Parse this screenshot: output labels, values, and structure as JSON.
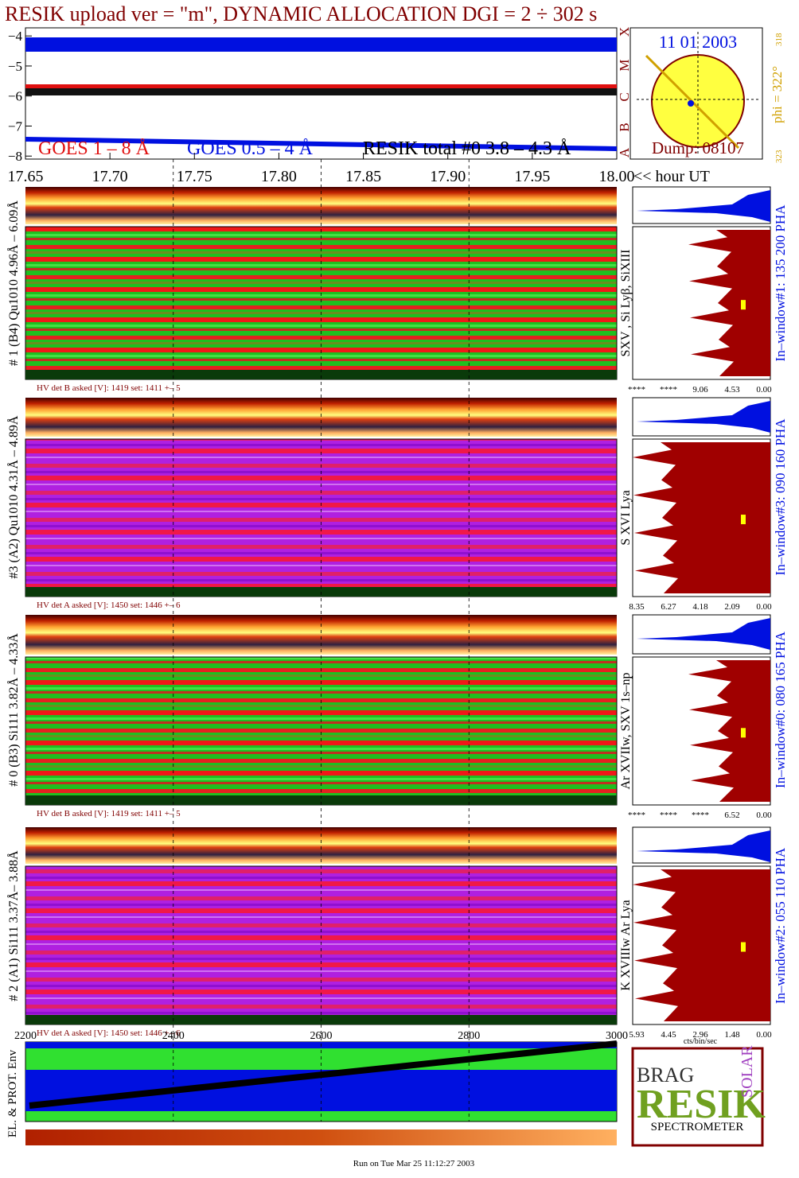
{
  "title": "RESIK upload ver = \"m\", DYNAMIC ALLOCATION  DGI =   2 ÷ 302 s",
  "goes": {
    "ylim": [
      -8.1,
      -3.73
    ],
    "yticks": [
      {
        "value": -4,
        "label": "−4"
      },
      {
        "value": -5,
        "label": "−5"
      },
      {
        "value": -6,
        "label": "−6"
      },
      {
        "value": -7,
        "label": "−7"
      },
      {
        "value": -8,
        "label": "−8"
      }
    ],
    "xlim": [
      17.65,
      18.0
    ],
    "xticks": [
      17.65,
      {
        "value": 17.7,
        "label": "17.70"
      },
      17.75,
      {
        "value": 17.8,
        "label": "17.80"
      },
      17.85,
      {
        "value": 17.9,
        "label": "17.90"
      },
      17.95,
      {
        "value": 18.0,
        "label": "18.00"
      }
    ],
    "xlabel": "<< hour UT",
    "legend": [
      "GOES 1 – 8 Å",
      "GOES 0.5 – 4 Å",
      "RESIK total #0  3.8 – 4.3 Å"
    ],
    "classes": [
      "X",
      "M",
      "C",
      "B",
      "A"
    ]
  },
  "sun": {
    "date": "11 01 2003",
    "dump": "Dump: 08107",
    "phi": "phi = 322°",
    "phi_low": "318",
    "phi_high": "323"
  },
  "panels": [
    {
      "ylabel": "# 1 (B4) Qu1010 4.96Å – 6.09Å",
      "lines": "SXV , Si Lyβ, SiXIII",
      "window": "In–window#1:  135 200 PHA",
      "hv": "HV det B asked [V]:  1419 set:  1411  +–   5",
      "hist_ticks": [
        "****",
        "****",
        "9.06",
        "4.53",
        "0.00"
      ]
    },
    {
      "ylabel": "#3 (A2) Qu1010  4.31Å – 4.89Å",
      "lines": "S XVI Lya",
      "window": "In–window#3:  090 160 PHA",
      "hv": "HV det A asked [V]:  1450 set:  1446  +–   6",
      "hist_ticks": [
        "8.35",
        "6.27",
        "4.18",
        "2.09",
        "0.00"
      ]
    },
    {
      "ylabel": "# 0 (B3) Si111  3.82Å – 4.33Å",
      "lines": "Ar XVIIw,  SXV 1s–np",
      "window": "In–window#0:  080 165 PHA",
      "hv": "HV det B asked [V]:  1419 set:  1411  +–   5",
      "hist_ticks": [
        "****",
        "****",
        "****",
        "6.52",
        "0.00"
      ]
    },
    {
      "ylabel": "# 2 (A1) Si111  3.37Å– 3.88Å",
      "lines": "K XVIIIw  Ar Lya",
      "window": "In–window#2:  055 110 PHA",
      "hv": "HV det A asked [V]:  1450 set:  1446  +–   6",
      "hist_ticks": [
        "5.93",
        "4.45",
        "2.96",
        "1.48",
        "0.00"
      ]
    }
  ],
  "hist_unit": "cts/bin/sec",
  "env": {
    "ylabel": "EL. & PROT. Env",
    "xlim": [
      2200,
      3000
    ],
    "xticks": [
      2200,
      2400,
      2600,
      2800,
      3000
    ]
  },
  "logo": {
    "brag": "BRAG",
    "resik": "RESIK",
    "solar": "SOLAR",
    "spectrometer": "SPECTROMETER"
  },
  "footer": "Run on Tue Mar 25 11:12:27 2003"
}
